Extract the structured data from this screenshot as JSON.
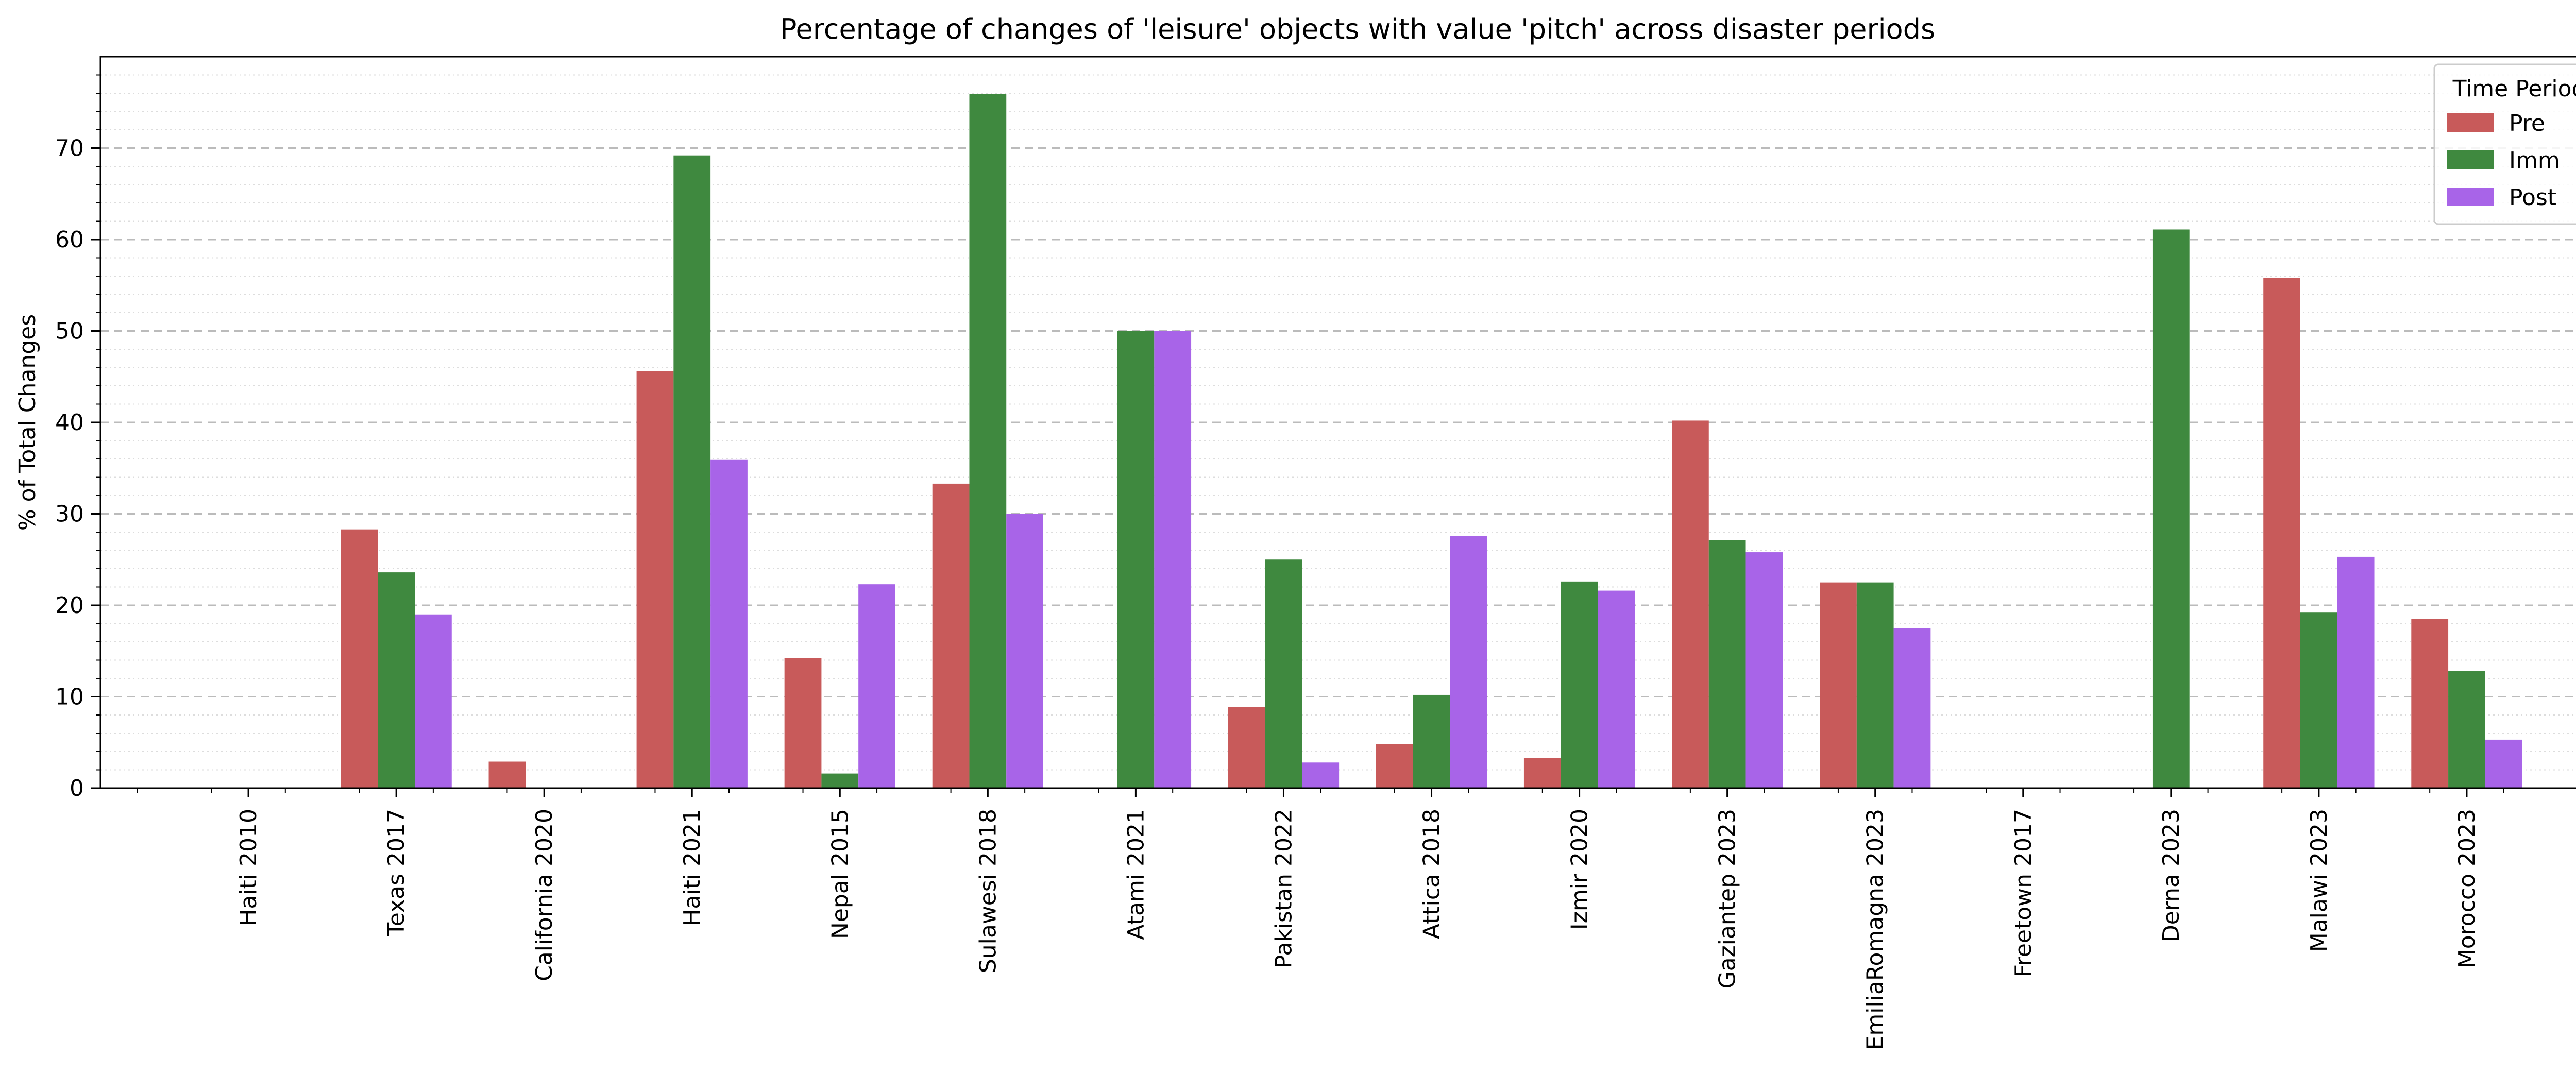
{
  "chart_data": {
    "type": "bar",
    "title": "Percentage of changes of 'leisure' objects with value 'pitch' across disaster periods",
    "xlabel": "",
    "ylabel": "% of Total Changes",
    "ylim": [
      0,
      80
    ],
    "yticks": [
      0,
      10,
      20,
      30,
      40,
      50,
      60,
      70
    ],
    "grid": true,
    "legend": {
      "title": "Time Period",
      "placement": "top-right"
    },
    "categories": [
      "Haiti 2010",
      "Texas 2017",
      "California 2020",
      "Haiti 2021",
      "Nepal 2015",
      "Sulawesi 2018",
      "Atami 2021",
      "Pakistan 2022",
      "Attica 2018",
      "Izmir 2020",
      "Gaziantep 2023",
      "EmiliaRomagna 2023",
      "Freetown 2017",
      "Derna 2023",
      "Malawi 2023",
      "Morocco 2023"
    ],
    "series": [
      {
        "name": "Pre",
        "color": "#c85a5a",
        "values": [
          0,
          28.3,
          2.9,
          45.6,
          14.2,
          33.3,
          0,
          8.9,
          4.8,
          3.3,
          40.2,
          22.5,
          0,
          0,
          55.8,
          18.5
        ]
      },
      {
        "name": "Imm",
        "color": "#3f893f",
        "values": [
          0,
          23.6,
          0,
          69.2,
          1.6,
          75.9,
          50.0,
          25.0,
          10.2,
          22.6,
          27.1,
          22.5,
          0,
          61.1,
          19.2,
          12.8
        ]
      },
      {
        "name": "Post",
        "color": "#a864e8",
        "values": [
          0,
          19.0,
          0,
          35.9,
          22.3,
          30.0,
          50.0,
          2.8,
          27.6,
          21.6,
          25.8,
          17.5,
          0,
          0,
          25.3,
          5.3
        ]
      }
    ]
  }
}
